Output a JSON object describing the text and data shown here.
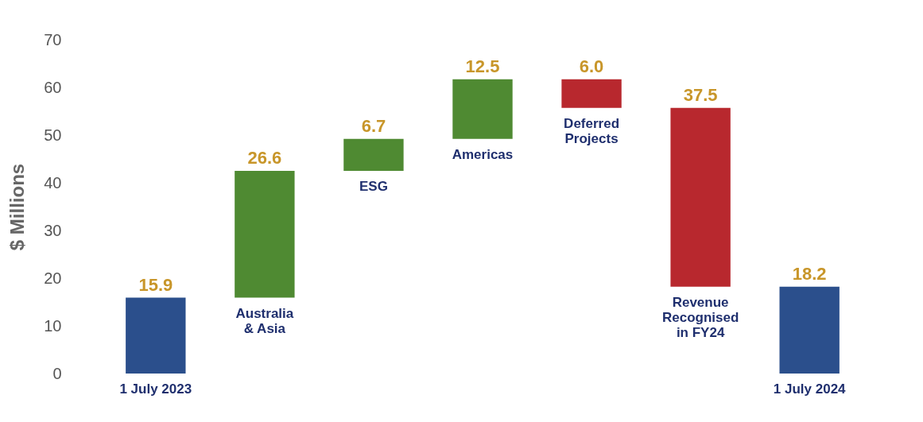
{
  "chart_data": {
    "type": "bar",
    "ylabel": "$ Millions",
    "categories": [
      "1 July 2023",
      "Australia\n& Asia",
      "ESG",
      "Americas",
      "Deferred\nProjects",
      "Revenue\nRecognised\nin FY24",
      "1 July 2024"
    ],
    "base": [
      0,
      15.9,
      42.5,
      49.2,
      61.7,
      55.7,
      0
    ],
    "values": [
      15.9,
      26.6,
      6.7,
      12.5,
      -6.0,
      -37.5,
      18.2
    ],
    "value_labels": [
      "15.9",
      "26.6",
      "6.7",
      "12.5",
      "6.0",
      "37.5",
      "18.2"
    ],
    "colors": [
      "#2b4f8c",
      "#4f8a32",
      "#4f8a32",
      "#4f8a32",
      "#b8282e",
      "#b8282e",
      "#2b4f8c"
    ],
    "ylim": [
      0,
      70
    ],
    "yticks": [
      0,
      10,
      20,
      30,
      40,
      50,
      60,
      70
    ],
    "grid": false
  }
}
